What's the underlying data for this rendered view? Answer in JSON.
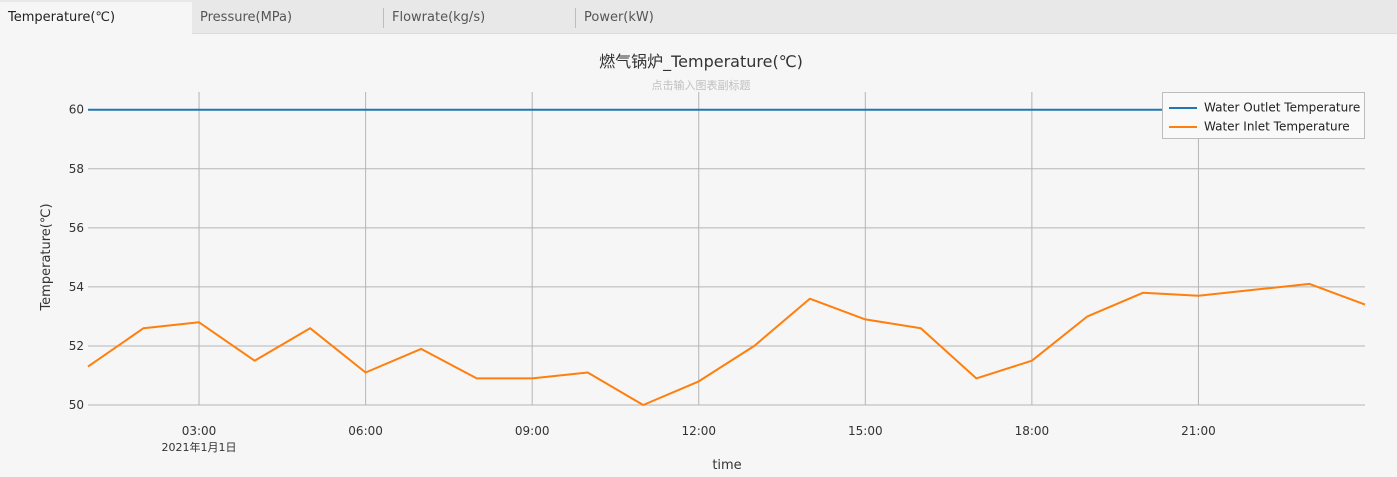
{
  "tabs": [
    {
      "label": "Temperature(℃)",
      "active": true
    },
    {
      "label": "Pressure(MPa)",
      "active": false
    },
    {
      "label": "Flowrate(kg/s)",
      "active": false
    },
    {
      "label": "Power(kW)",
      "active": false
    }
  ],
  "chart_data": {
    "type": "line",
    "title": "燃气锅炉_Temperature(℃)",
    "subtitle": "点击输入图表副标题",
    "xlabel": "time",
    "ylabel": "Temperature(℃)",
    "ylim": [
      50,
      60.6
    ],
    "yticks": [
      50,
      52,
      54,
      56,
      58,
      60
    ],
    "x_range": [
      "2021-01-01 01:00",
      "2021-01-01 24:00"
    ],
    "xticks": [
      {
        "label": "03:00",
        "sublabel": "2021年1月1日",
        "hour": 3
      },
      {
        "label": "06:00",
        "sublabel": "",
        "hour": 6
      },
      {
        "label": "09:00",
        "sublabel": "",
        "hour": 9
      },
      {
        "label": "12:00",
        "sublabel": "",
        "hour": 12
      },
      {
        "label": "15:00",
        "sublabel": "",
        "hour": 15
      },
      {
        "label": "18:00",
        "sublabel": "",
        "hour": 18
      },
      {
        "label": "21:00",
        "sublabel": "",
        "hour": 21
      }
    ],
    "grid": true,
    "legend_position": "top-right",
    "x": [
      1,
      2,
      3,
      4,
      5,
      6,
      7,
      8,
      9,
      10,
      11,
      12,
      13,
      14,
      15,
      16,
      17,
      18,
      19,
      20,
      21,
      22,
      23,
      24
    ],
    "series": [
      {
        "name": "Water Outlet Temperature",
        "color": "#1f77b4",
        "values": [
          60,
          60,
          60,
          60,
          60,
          60,
          60,
          60,
          60,
          60,
          60,
          60,
          60,
          60,
          60,
          60,
          60,
          60,
          60,
          60,
          60,
          60,
          60,
          60
        ]
      },
      {
        "name": "Water Inlet Temperature",
        "color": "#ff7f0e",
        "values": [
          51.3,
          52.6,
          52.8,
          51.5,
          52.6,
          51.1,
          51.9,
          50.9,
          50.9,
          51.1,
          50.0,
          50.8,
          52.0,
          53.6,
          52.9,
          52.6,
          50.9,
          51.5,
          53.0,
          53.8,
          53.7,
          53.9,
          54.1,
          53.4
        ]
      }
    ]
  }
}
